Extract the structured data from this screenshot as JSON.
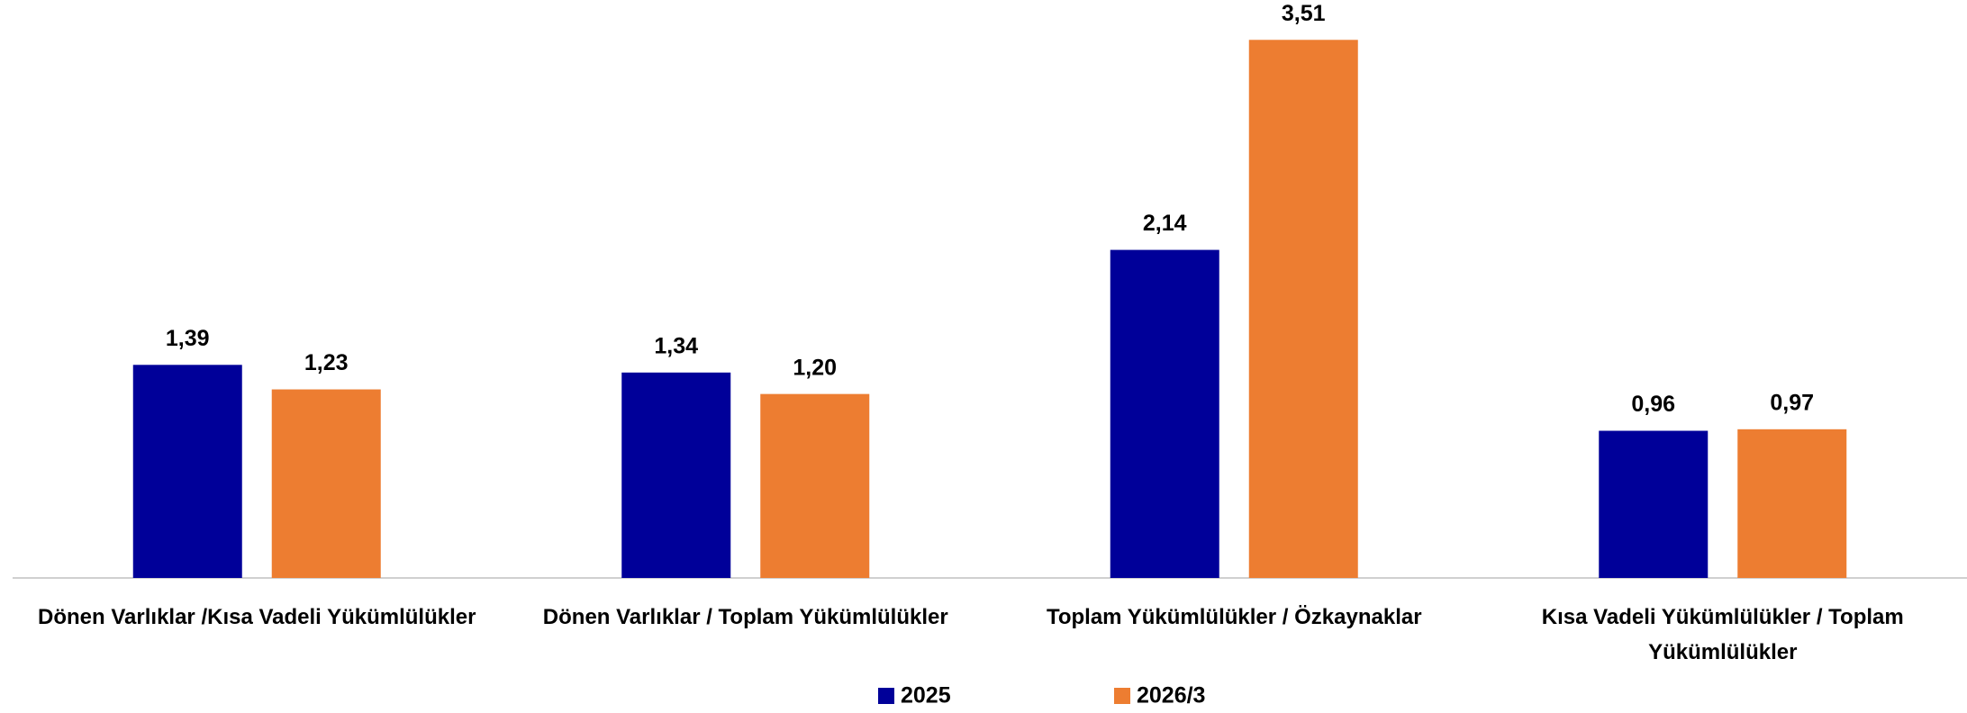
{
  "chart_data": {
    "type": "bar",
    "categories": [
      "Dönen Varlıklar /Kısa Vadeli Yükümlülükler",
      "Dönen Varlıklar / Toplam Yükümlülükler",
      "Toplam Yükümlülükler / Özkaynaklar",
      "Kısa Vadeli Yükümlülükler / Toplam Yükümlülükler"
    ],
    "series": [
      {
        "name": "2025",
        "color": "#000099",
        "values": [
          1.39,
          1.34,
          2.14,
          0.96
        ],
        "value_labels": [
          "1,39",
          "1,34",
          "2,14",
          "0,96"
        ]
      },
      {
        "name": "2026/3",
        "color": "#ed7d31",
        "values": [
          1.23,
          1.2,
          3.51,
          0.97
        ],
        "value_labels": [
          "1,23",
          "1,20",
          "3,51",
          "0,97"
        ]
      }
    ],
    "ylim": [
      0,
      3.77
    ],
    "grid": false,
    "legend": "bottom"
  }
}
